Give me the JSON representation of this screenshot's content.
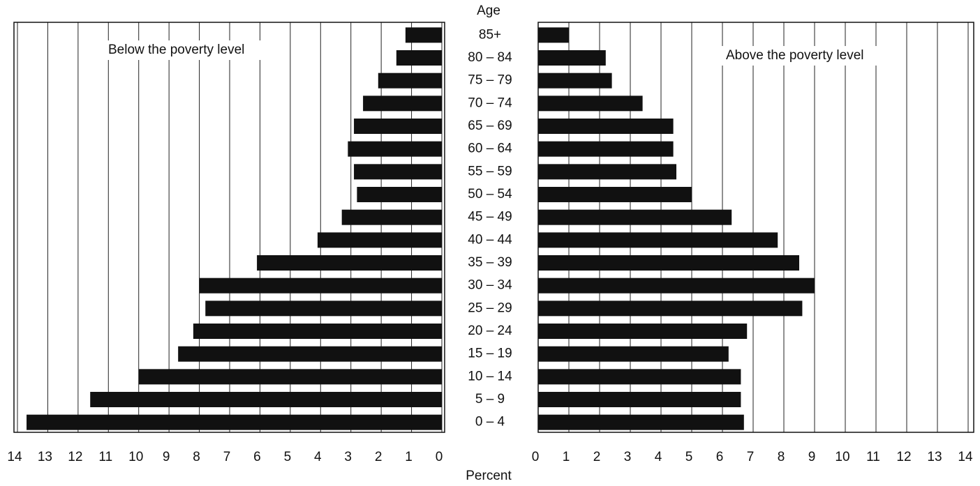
{
  "chart_data": [
    {
      "type": "bar",
      "orientation": "horizontal",
      "annotation": "Below the poverty level",
      "y_label": "Age",
      "x_label": "Percent",
      "categories": [
        "85+",
        "80 – 84",
        "75 – 79",
        "70 – 74",
        "65 – 69",
        "60 – 64",
        "55 – 59",
        "50 – 54",
        "45 – 49",
        "40 – 44",
        "35 – 39",
        "30 – 34",
        "25 – 29",
        "20 – 24",
        "15 – 19",
        "10 – 14",
        "5 – 9",
        "0 – 4"
      ],
      "values": [
        1.2,
        1.5,
        2.1,
        2.6,
        2.9,
        3.1,
        2.9,
        2.8,
        3.3,
        4.1,
        6.1,
        8.0,
        7.8,
        8.2,
        8.7,
        10.0,
        11.6,
        13.7
      ],
      "color": "#111111",
      "xlim": [
        14,
        0
      ],
      "xticks": [
        14,
        13,
        12,
        11,
        10,
        9,
        8,
        7,
        6,
        5,
        4,
        3,
        2,
        1,
        0
      ],
      "grid": true
    },
    {
      "type": "bar",
      "orientation": "horizontal",
      "annotation": "Above the poverty level",
      "values": [
        1.0,
        2.2,
        2.4,
        3.4,
        4.4,
        4.4,
        4.5,
        5.0,
        6.3,
        7.8,
        8.5,
        9.0,
        8.6,
        6.8,
        6.2,
        6.6,
        6.6,
        6.7
      ],
      "color": "#111111",
      "xlim": [
        0,
        14
      ],
      "xticks": [
        0,
        1,
        2,
        3,
        4,
        5,
        6,
        7,
        8,
        9,
        10,
        11,
        12,
        13,
        14
      ],
      "grid": true
    }
  ]
}
